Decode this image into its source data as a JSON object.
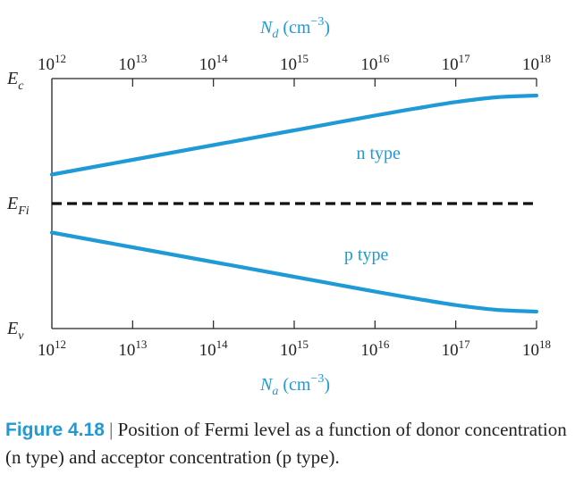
{
  "chart_data": {
    "type": "line",
    "top_axis": {
      "label_main": "N",
      "label_sub": "d",
      "label_unit_open": " (cm",
      "label_exp": "−3",
      "label_unit_close": ")",
      "scale": "log",
      "range": [
        1000000000000.0,
        1e+18
      ]
    },
    "bottom_axis": {
      "label_main": "N",
      "label_sub": "a",
      "label_unit_open": " (cm",
      "label_exp": "−3",
      "label_unit_close": ")",
      "scale": "log",
      "range": [
        1000000000000.0,
        1e+18
      ]
    },
    "ticks": [
      {
        "base": "10",
        "exp": "12",
        "log": 12
      },
      {
        "base": "10",
        "exp": "13",
        "log": 13
      },
      {
        "base": "10",
        "exp": "14",
        "log": 14
      },
      {
        "base": "10",
        "exp": "15",
        "log": 15
      },
      {
        "base": "10",
        "exp": "16",
        "log": 16
      },
      {
        "base": "10",
        "exp": "17",
        "log": 17
      },
      {
        "base": "10",
        "exp": "18",
        "log": 18
      }
    ],
    "energy_levels": [
      {
        "main": "E",
        "sub": "c",
        "value": 1.0
      },
      {
        "main": "E",
        "sub": "Fi",
        "value": 0.5
      },
      {
        "main": "E",
        "sub": "v",
        "value": 0.0
      }
    ],
    "series": [
      {
        "name": "n type",
        "color": "#1f9ad6",
        "x_log": [
          12,
          13,
          14,
          15,
          16,
          16.5,
          17,
          17.5,
          18
        ],
        "y": [
          0.616,
          0.675,
          0.734,
          0.793,
          0.852,
          0.88,
          0.906,
          0.925,
          0.932
        ]
      },
      {
        "name": "p type",
        "color": "#1f9ad6",
        "x_log": [
          12,
          13,
          14,
          15,
          16,
          16.5,
          17,
          17.5,
          18
        ],
        "y": [
          0.384,
          0.325,
          0.266,
          0.207,
          0.148,
          0.12,
          0.094,
          0.075,
          0.068
        ]
      }
    ],
    "reference_lines": [
      {
        "name": "intrinsic Fermi level",
        "value": 0.5,
        "style": "dashed",
        "color": "#111111"
      }
    ]
  },
  "caption": {
    "label": "Figure 4.18",
    "separator": " | ",
    "text": "Position of Fermi level as a function of donor concentration (n type) and acceptor concentration (p type)."
  }
}
